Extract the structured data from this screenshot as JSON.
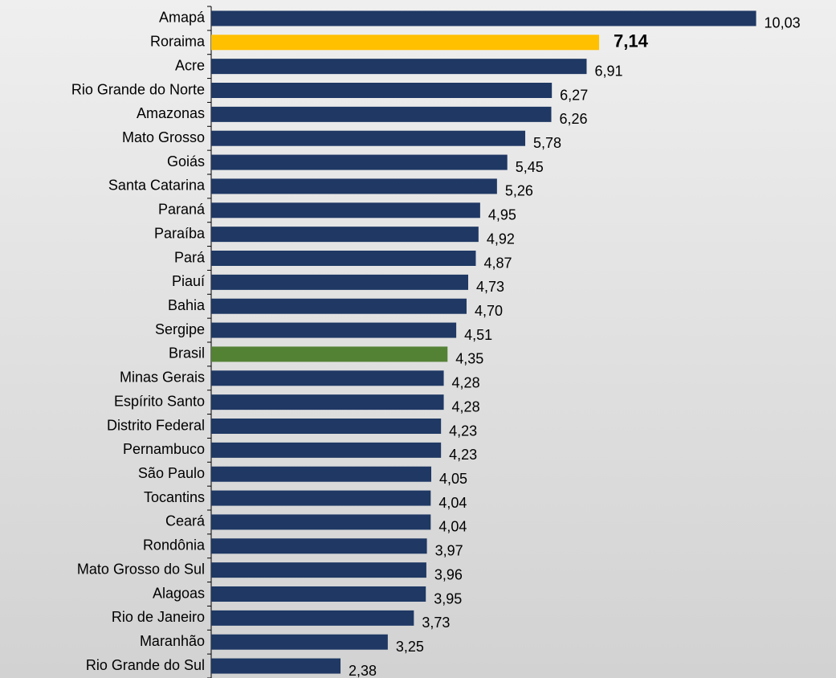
{
  "chart_data": {
    "type": "hbar",
    "categories": [
      "Amapá",
      "Roraima",
      "Acre",
      "Rio Grande do Norte",
      "Amazonas",
      "Mato Grosso",
      "Goiás",
      "Santa Catarina",
      "Paraná",
      "Paraíba",
      "Pará",
      "Piauí",
      "Bahia",
      "Sergipe",
      "Brasil",
      "Minas Gerais",
      "Espírito Santo",
      "Distrito Federal",
      "Pernambuco",
      "São Paulo",
      "Tocantins",
      "Ceará",
      "Rondônia",
      "Mato Grosso do Sul",
      "Alagoas",
      "Rio de Janeiro",
      "Maranhão",
      "Rio Grande do Sul"
    ],
    "values": [
      10.03,
      7.14,
      6.91,
      6.27,
      6.26,
      5.78,
      5.45,
      5.26,
      4.95,
      4.92,
      4.87,
      4.73,
      4.7,
      4.51,
      4.35,
      4.28,
      4.28,
      4.23,
      4.23,
      4.05,
      4.04,
      4.04,
      3.97,
      3.96,
      3.95,
      3.73,
      3.25,
      2.38
    ],
    "value_labels": [
      "10,03",
      "7,14",
      "6,91",
      "6,27",
      "6,26",
      "5,78",
      "5,45",
      "5,26",
      "4,95",
      "4,92",
      "4,87",
      "4,73",
      "4,70",
      "4,51",
      "4,35",
      "4,28",
      "4,28",
      "4,23",
      "4,23",
      "4,05",
      "4,04",
      "4,04",
      "3,97",
      "3,96",
      "3,95",
      "3,73",
      "3,25",
      "2,38"
    ],
    "colors": [
      "#1f3864",
      "#ffc000",
      "#1f3864",
      "#1f3864",
      "#1f3864",
      "#1f3864",
      "#1f3864",
      "#1f3864",
      "#1f3864",
      "#1f3864",
      "#1f3864",
      "#1f3864",
      "#1f3864",
      "#1f3864",
      "#548235",
      "#1f3864",
      "#1f3864",
      "#1f3864",
      "#1f3864",
      "#1f3864",
      "#1f3864",
      "#1f3864",
      "#1f3864",
      "#1f3864",
      "#1f3864",
      "#1f3864",
      "#1f3864",
      "#1f3864"
    ],
    "bold_value_label": "Roraima",
    "xlim": [
      0,
      11.5
    ]
  }
}
